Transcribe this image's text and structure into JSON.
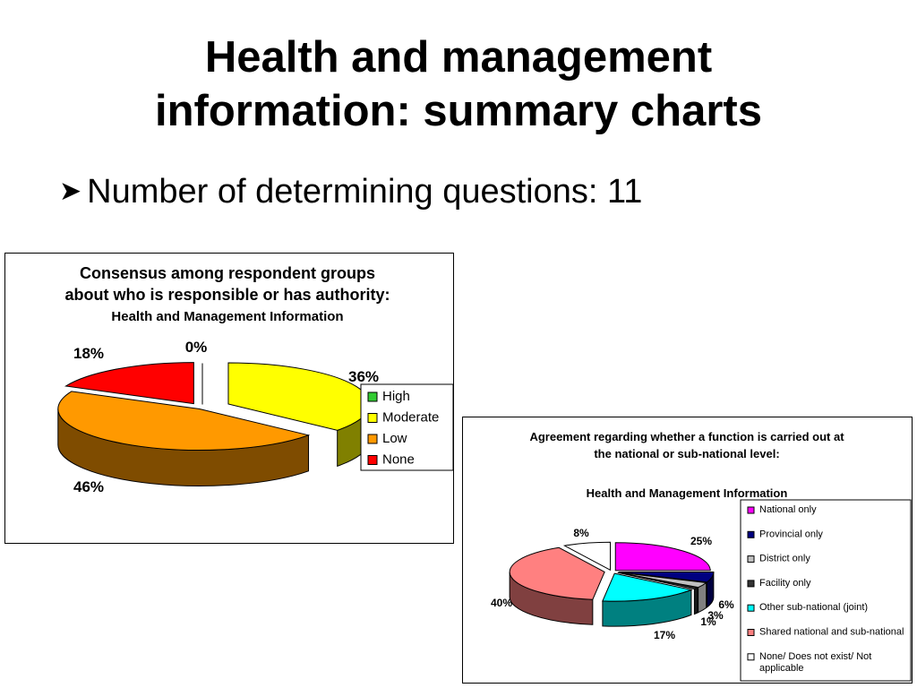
{
  "slide": {
    "title_line1": "Health and management",
    "title_line2": "information: summary charts",
    "bullet_text": "Number of determining questions: 11"
  },
  "chart_data": [
    {
      "type": "pie",
      "title_lines": [
        "Consensus among respondent groups",
        "about who is responsible or has authority:"
      ],
      "subtitle": "Health and Management Information",
      "categories": [
        "High",
        "Moderate",
        "Low",
        "None"
      ],
      "values": [
        0,
        36,
        46,
        18
      ],
      "labels": [
        "0%",
        "36%",
        "46%",
        "18%"
      ],
      "colors": [
        "#33CC33",
        "#FFFF00",
        "#FF9900",
        "#FF0000"
      ],
      "side_colors": [
        "#228822",
        "#808000",
        "#7F4C00",
        "#800000"
      ],
      "exploded": true,
      "legend_position": "right"
    },
    {
      "type": "pie",
      "title_lines": [
        "Agreement regarding whether a function is carried out at",
        "the national or sub-national level:"
      ],
      "subtitle": "Health and Management Information",
      "categories": [
        "National only",
        "Provincial only",
        "District only",
        "Facility only",
        "Other sub-national (joint)",
        "Shared national and sub-national",
        "None/ Does not exist/ Not applicable"
      ],
      "legend_lines": [
        [
          "National only"
        ],
        [
          "Provincial only"
        ],
        [
          "District only"
        ],
        [
          "Facility only"
        ],
        [
          "Other sub-national (joint)"
        ],
        [
          "Shared national and sub-national"
        ],
        [
          "None/ Does not exist/ Not",
          "applicable"
        ]
      ],
      "values": [
        25,
        6,
        3,
        1,
        17,
        40,
        8
      ],
      "labels": [
        "25%",
        "6%",
        "3%",
        "1%",
        "17%",
        "40%",
        "8%"
      ],
      "colors": [
        "#FF00FF",
        "#000080",
        "#C0C0C0",
        "#333333",
        "#00FFFF",
        "#FF8080",
        "#FFFFFF"
      ],
      "side_colors": [
        "#800080",
        "#000040",
        "#808080",
        "#1A1A1A",
        "#008080",
        "#804040",
        "#C0C0C0"
      ],
      "exploded": true,
      "legend_position": "right"
    }
  ]
}
